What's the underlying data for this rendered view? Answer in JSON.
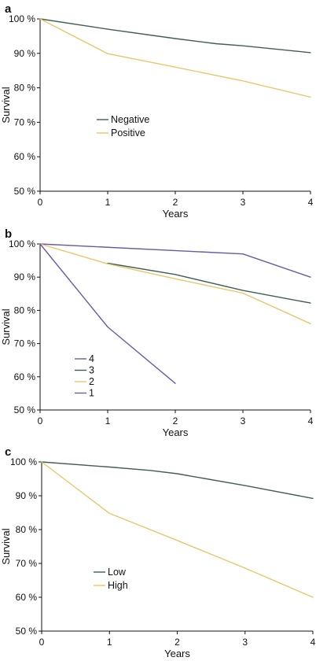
{
  "chart_data": [
    {
      "panel": "a",
      "type": "line",
      "xlabel": "Years",
      "ylabel": "Survival",
      "xlim": [
        0,
        4
      ],
      "ylim": [
        50,
        100
      ],
      "xticks": [
        "0",
        "1",
        "2",
        "3",
        "4"
      ],
      "yticks": [
        "50 %",
        "60 %",
        "70 %",
        "80 %",
        "90 %",
        "100 %"
      ],
      "grid": false,
      "legend_position": "center-left",
      "series": [
        {
          "name": "Negative",
          "color": "#3f5f55",
          "x": [
            0,
            1,
            2,
            2.6,
            3,
            4
          ],
          "y": [
            100,
            97,
            94.3,
            92.8,
            92.2,
            90.2
          ]
        },
        {
          "name": "Positive",
          "color": "#e8c76a",
          "x": [
            0,
            1,
            2,
            3,
            4
          ],
          "y": [
            100,
            89.9,
            86,
            82,
            77.3
          ]
        }
      ]
    },
    {
      "panel": "b",
      "type": "line",
      "xlabel": "Years",
      "ylabel": "Survival",
      "xlim": [
        0,
        4
      ],
      "ylim": [
        50,
        100
      ],
      "xticks": [
        "0",
        "1",
        "2",
        "3",
        "4"
      ],
      "yticks": [
        "50 %",
        "60 %",
        "70 %",
        "80 %",
        "90 %",
        "100 %"
      ],
      "grid": false,
      "legend_position": "lower-left",
      "series": [
        {
          "name": "4",
          "color": "#6a5aa8",
          "x": [
            0,
            3,
            4
          ],
          "y": [
            100,
            97,
            90
          ]
        },
        {
          "name": "3",
          "color": "#3f5f55",
          "x": [
            1,
            2,
            3,
            4
          ],
          "y": [
            94.2,
            90.8,
            86,
            82.2
          ]
        },
        {
          "name": "2",
          "color": "#e8c76a",
          "x": [
            0,
            1,
            2,
            3,
            4
          ],
          "y": [
            100,
            94,
            89.5,
            85.2,
            76
          ]
        },
        {
          "name": "1",
          "color": "#6a5aa8",
          "x": [
            0,
            1,
            2
          ],
          "y": [
            100,
            75,
            58
          ]
        }
      ]
    },
    {
      "panel": "c",
      "type": "line",
      "xlabel": "Years",
      "ylabel": "Survival",
      "xlim": [
        0,
        4
      ],
      "ylim": [
        50,
        100
      ],
      "xticks": [
        "0",
        "1",
        "2",
        "3",
        "4"
      ],
      "yticks": [
        "50 %",
        "60 %",
        "70 %",
        "80 %",
        "90 %",
        "100 %"
      ],
      "grid": false,
      "legend_position": "lower-left",
      "series": [
        {
          "name": "Low",
          "color": "#3f5f55",
          "x": [
            0,
            1,
            1.6,
            2,
            3,
            4
          ],
          "y": [
            100,
            98.5,
            97.5,
            96.5,
            93,
            89.2
          ]
        },
        {
          "name": "High",
          "color": "#e8c76a",
          "x": [
            0,
            1,
            2,
            3,
            4
          ],
          "y": [
            100,
            84.8,
            76.8,
            68.6,
            60
          ]
        }
      ]
    }
  ]
}
